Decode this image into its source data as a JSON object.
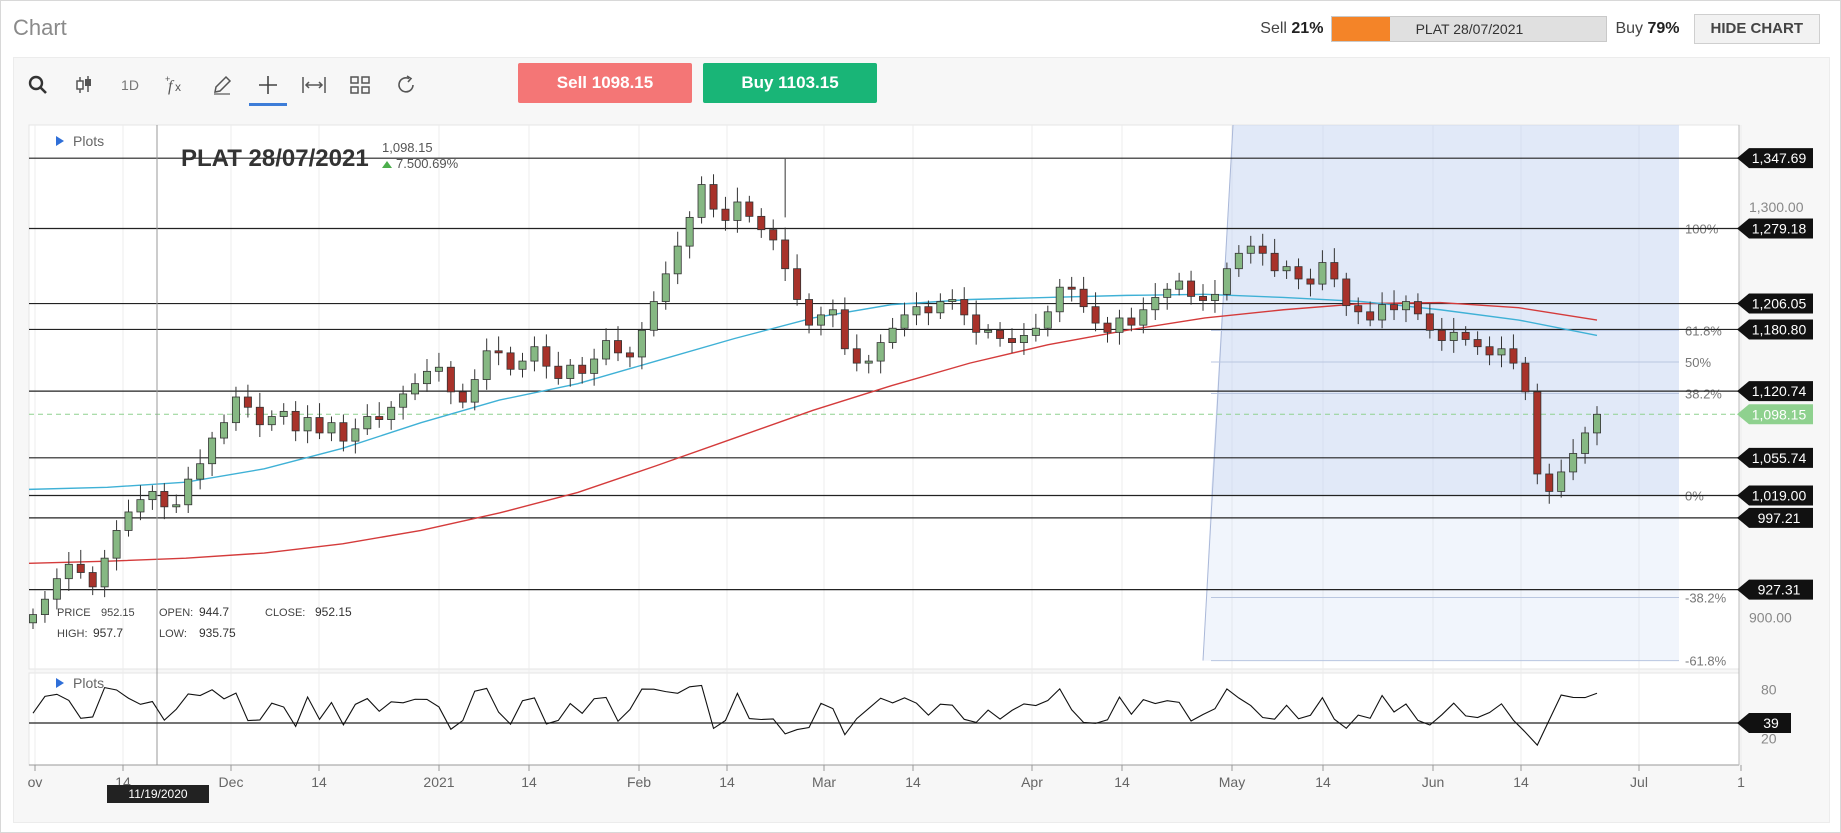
{
  "window": {
    "title": "Chart"
  },
  "sentiment": {
    "sell_label": "Sell",
    "sell_pct": "21%",
    "sell_fraction": 0.21,
    "instrument": "PLAT 28/07/2021",
    "buy_label": "Buy",
    "buy_pct": "79%"
  },
  "header": {
    "hide_chart_label": "HIDE CHART"
  },
  "toolbar": {
    "items": [
      {
        "name": "search-icon",
        "glyph": "⚲"
      },
      {
        "name": "candlestick-icon",
        "glyph": "╂"
      },
      {
        "name": "interval",
        "glyph": "1D"
      },
      {
        "name": "function-icon",
        "glyph": "ƒx"
      },
      {
        "name": "pencil-icon",
        "glyph": "✎"
      },
      {
        "name": "crosshair-icon",
        "glyph": "+"
      },
      {
        "name": "measure-icon",
        "glyph": "⟷"
      },
      {
        "name": "layout-grid-icon",
        "glyph": "▦"
      },
      {
        "name": "refresh-icon",
        "glyph": "↻"
      }
    ],
    "sell_button": "Sell 1098.15",
    "buy_button": "Buy 1103.15"
  },
  "colors": {
    "up": "#86b883",
    "down": "#a8322a",
    "ma_blue": "#3fb1d6",
    "ma_red": "#d43b3b",
    "fib_fill": "#c9d7f2",
    "last_price": "#8fd18f"
  },
  "chart_data": {
    "type": "candlestick",
    "symbol": "PLAT 28/07/2021",
    "last_price": "1,098.15",
    "change": "7.500.69%",
    "plots_label": "Plots",
    "ohlc_readout": {
      "price_label": "PRICE",
      "price": "952.15",
      "open_label": "OPEN:",
      "open": "944.7",
      "close_label": "CLOSE:",
      "close": "952.15",
      "high_label": "HIGH:",
      "high": "957.7",
      "low_label": "LOW:",
      "low": "935.75"
    },
    "x_axis": {
      "ticks": [
        "ov",
        "14",
        "Dec",
        "14",
        "2021",
        "14",
        "Feb",
        "14",
        "Mar",
        "14",
        "Apr",
        "14",
        "May",
        "14",
        "Jun",
        "14",
        "Jul",
        "1"
      ],
      "cursor_date": "11/19/2020"
    },
    "y_axis": {
      "range": [
        850,
        1380
      ],
      "ticks": [
        "1,300.00",
        "900.00"
      ]
    },
    "horizontal_levels": [
      "1,347.69",
      "1,279.18",
      "1,206.05",
      "1,180.80",
      "1,120.74",
      "1,055.74",
      "1,019.00",
      "997.21",
      "927.31"
    ],
    "fibonacci": {
      "levels": [
        "100%",
        "61.8%",
        "50%",
        "38.2%",
        "0%",
        "-38.2%",
        "-61.8%"
      ],
      "high": 1279.18,
      "low": 1019.0
    },
    "price_series": {
      "start_close": 903,
      "high_point": 1347,
      "end_close": 1098.15,
      "closes": [
        903,
        918,
        938,
        952,
        944,
        930,
        958,
        985,
        1003,
        1015,
        1023,
        1008,
        1010,
        1035,
        1050,
        1075,
        1090,
        1115,
        1105,
        1088,
        1096,
        1101,
        1082,
        1095,
        1080,
        1090,
        1072,
        1084,
        1096,
        1093,
        1105,
        1118,
        1128,
        1140,
        1144,
        1120,
        1110,
        1132,
        1160,
        1158,
        1142,
        1150,
        1164,
        1145,
        1133,
        1146,
        1138,
        1152,
        1170,
        1158,
        1154,
        1180,
        1208,
        1235,
        1262,
        1290,
        1322,
        1298,
        1287,
        1305,
        1291,
        1278,
        1268,
        1240,
        1210,
        1185,
        1195,
        1200,
        1162,
        1148,
        1150,
        1168,
        1182,
        1195,
        1203,
        1197,
        1208,
        1210,
        1195,
        1178,
        1180,
        1172,
        1168,
        1175,
        1182,
        1198,
        1222,
        1220,
        1203,
        1187,
        1178,
        1192,
        1185,
        1200,
        1212,
        1220,
        1228,
        1213,
        1209,
        1215,
        1240,
        1255,
        1262,
        1255,
        1238,
        1242,
        1230,
        1225,
        1246,
        1230,
        1204,
        1198,
        1190,
        1205,
        1200,
        1208,
        1196,
        1180,
        1170,
        1178,
        1171,
        1164,
        1156,
        1162,
        1148,
        1120,
        1040,
        1023,
        1042,
        1060,
        1080,
        1098.15
      ],
      "ma_fast": [
        1025,
        1027,
        1032,
        1045,
        1065,
        1090,
        1112,
        1128,
        1150,
        1172,
        1192,
        1205,
        1210,
        1212,
        1214,
        1215,
        1212,
        1208,
        1200,
        1190,
        1175
      ],
      "ma_slow": [
        953,
        955,
        958,
        963,
        972,
        985,
        1002,
        1022,
        1048,
        1075,
        1102,
        1126,
        1148,
        1166,
        1180,
        1192,
        1200,
        1206,
        1207,
        1202,
        1190
      ]
    },
    "oscillator": {
      "ticks": [
        "80",
        "20"
      ],
      "level": "39"
    }
  }
}
